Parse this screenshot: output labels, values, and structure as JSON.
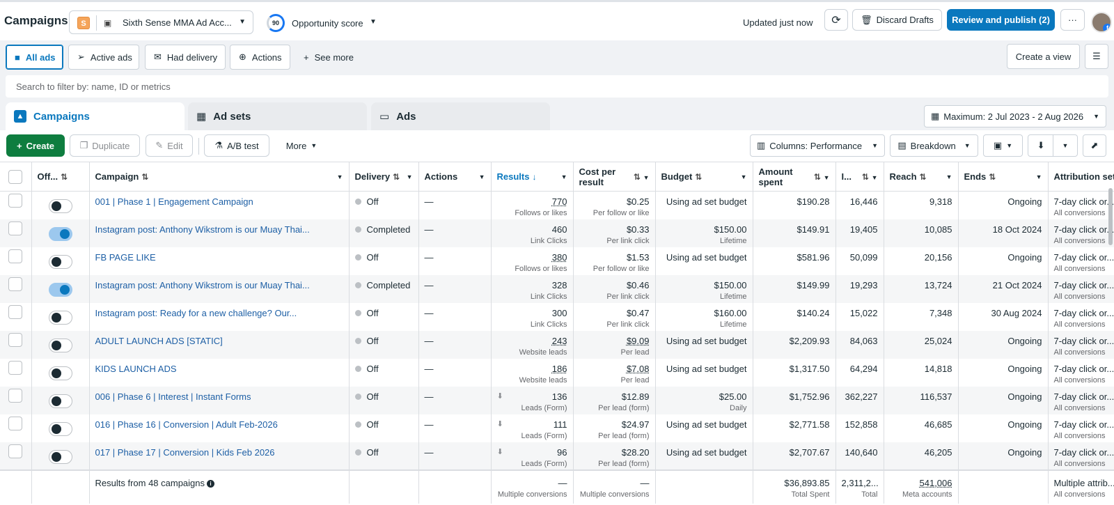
{
  "header": {
    "title": "Campaigns",
    "account_badge": "S",
    "account_name": "Sixth Sense MMA Ad Acc...",
    "opportunity_score": "90",
    "opportunity_label": "Opportunity score",
    "updated": "Updated just now",
    "discard_label": "Discard Drafts",
    "publish_label": "Review and publish (2)",
    "more_label": "···"
  },
  "filters": {
    "chips": [
      "All ads",
      "Active ads",
      "Had delivery",
      "Actions",
      "See more"
    ],
    "create_view": "Create a view"
  },
  "search": {
    "placeholder": "Search to filter by: name, ID or metrics"
  },
  "tabs": [
    "Campaigns",
    "Ad sets",
    "Ads"
  ],
  "date_range": "Maximum: 2 Jul 2023 - 2 Aug 2026",
  "toolbar": {
    "create": "Create",
    "duplicate": "Duplicate",
    "edit": "Edit",
    "ab_test": "A/B test",
    "more": "More",
    "columns": "Columns: Performance",
    "breakdown": "Breakdown"
  },
  "columns": {
    "offon": "Off...",
    "campaign": "Campaign",
    "delivery": "Delivery",
    "actions": "Actions",
    "results": "Results",
    "cost_per_result": "Cost per result",
    "budget": "Budget",
    "amount_spent": "Amount spent",
    "impressions": "I...",
    "reach": "Reach",
    "ends": "Ends",
    "attribution": "Attribution setting"
  },
  "rows": [
    {
      "on": false,
      "campaign": "001 | Phase 1 | Engagement Campaign",
      "delivery": "Off",
      "actions": "—",
      "results": "770",
      "results_sub": "Follows or likes",
      "cpr": "$0.25",
      "cpr_sub": "Per follow or like",
      "budget": "Using ad set budget",
      "budget_sub": "",
      "spent": "$190.28",
      "impr": "16,446",
      "reach": "9,318",
      "ends": "Ongoing",
      "attr": "7-day click or...",
      "attr_sub": "All conversions",
      "dl": false,
      "u": true
    },
    {
      "on": true,
      "campaign": "Instagram post: Anthony Wikstrom is our Muay Thai...",
      "delivery": "Completed",
      "actions": "—",
      "results": "460",
      "results_sub": "Link Clicks",
      "cpr": "$0.33",
      "cpr_sub": "Per link click",
      "budget": "$150.00",
      "budget_sub": "Lifetime",
      "spent": "$149.91",
      "impr": "19,405",
      "reach": "10,085",
      "ends": "18 Oct 2024",
      "attr": "7-day click or...",
      "attr_sub": "All conversions",
      "dl": false,
      "u": false
    },
    {
      "on": false,
      "campaign": "FB PAGE LIKE",
      "delivery": "Off",
      "actions": "—",
      "results": "380",
      "results_sub": "Follows or likes",
      "cpr": "$1.53",
      "cpr_sub": "Per follow or like",
      "budget": "Using ad set budget",
      "budget_sub": "",
      "spent": "$581.96",
      "impr": "50,099",
      "reach": "20,156",
      "ends": "Ongoing",
      "attr": "7-day click or...",
      "attr_sub": "All conversions",
      "dl": false,
      "u": true
    },
    {
      "on": true,
      "campaign": "Instagram post: Anthony Wikstrom is our Muay Thai...",
      "delivery": "Completed",
      "actions": "—",
      "results": "328",
      "results_sub": "Link Clicks",
      "cpr": "$0.46",
      "cpr_sub": "Per link click",
      "budget": "$150.00",
      "budget_sub": "Lifetime",
      "spent": "$149.99",
      "impr": "19,293",
      "reach": "13,724",
      "ends": "21 Oct 2024",
      "attr": "7-day click or...",
      "attr_sub": "All conversions",
      "dl": false,
      "u": false
    },
    {
      "on": false,
      "campaign": "Instagram post: Ready for a new challenge? Our...",
      "delivery": "Off",
      "actions": "—",
      "results": "300",
      "results_sub": "Link Clicks",
      "cpr": "$0.47",
      "cpr_sub": "Per link click",
      "budget": "$160.00",
      "budget_sub": "Lifetime",
      "spent": "$140.24",
      "impr": "15,022",
      "reach": "7,348",
      "ends": "30 Aug 2024",
      "attr": "7-day click or...",
      "attr_sub": "All conversions",
      "dl": false,
      "u": false
    },
    {
      "on": false,
      "campaign": "ADULT LAUNCH ADS [STATIC]",
      "delivery": "Off",
      "actions": "—",
      "results": "243",
      "results_sub": "Website leads",
      "cpr": "$9.09",
      "cpr_sub": "Per lead",
      "budget": "Using ad set budget",
      "budget_sub": "",
      "spent": "$2,209.93",
      "impr": "84,063",
      "reach": "25,024",
      "ends": "Ongoing",
      "attr": "7-day click or...",
      "attr_sub": "All conversions",
      "dl": false,
      "u": true
    },
    {
      "on": false,
      "campaign": "KIDS LAUNCH ADS",
      "delivery": "Off",
      "actions": "—",
      "results": "186",
      "results_sub": "Website leads",
      "cpr": "$7.08",
      "cpr_sub": "Per lead",
      "budget": "Using ad set budget",
      "budget_sub": "",
      "spent": "$1,317.50",
      "impr": "64,294",
      "reach": "14,818",
      "ends": "Ongoing",
      "attr": "7-day click or...",
      "attr_sub": "All conversions",
      "dl": false,
      "u": true
    },
    {
      "on": false,
      "campaign": "006 | Phase 6 | Interest | Instant Forms",
      "delivery": "Off",
      "actions": "—",
      "results": "136",
      "results_sub": "Leads (Form)",
      "cpr": "$12.89",
      "cpr_sub": "Per lead (form)",
      "budget": "$25.00",
      "budget_sub": "Daily",
      "spent": "$1,752.96",
      "impr": "362,227",
      "reach": "116,537",
      "ends": "Ongoing",
      "attr": "7-day click or...",
      "attr_sub": "All conversions",
      "dl": true,
      "u": false
    },
    {
      "on": false,
      "campaign": "016 | Phase 16 | Conversion | Adult Feb-2026",
      "delivery": "Off",
      "actions": "—",
      "results": "111",
      "results_sub": "Leads (Form)",
      "cpr": "$24.97",
      "cpr_sub": "Per lead (form)",
      "budget": "Using ad set budget",
      "budget_sub": "",
      "spent": "$2,771.58",
      "impr": "152,858",
      "reach": "46,685",
      "ends": "Ongoing",
      "attr": "7-day click or...",
      "attr_sub": "All conversions",
      "dl": true,
      "u": false
    },
    {
      "on": false,
      "campaign": "017 | Phase 17 | Conversion | Kids Feb 2026",
      "delivery": "Off",
      "actions": "—",
      "results": "96",
      "results_sub": "Leads (Form)",
      "cpr": "$28.20",
      "cpr_sub": "Per lead (form)",
      "budget": "Using ad set budget",
      "budget_sub": "",
      "spent": "$2,707.67",
      "impr": "140,640",
      "reach": "46,205",
      "ends": "Ongoing",
      "attr": "7-day click or...",
      "attr_sub": "All conversions",
      "dl": true,
      "u": false
    }
  ],
  "footer": {
    "summary": "Results from 48 campaigns",
    "results": "—",
    "results_sub": "Multiple conversions",
    "cpr": "—",
    "cpr_sub": "Multiple conversions",
    "spent": "$36,893.85",
    "spent_sub": "Total Spent",
    "impr": "2,311,2...",
    "impr_sub": "Total",
    "reach": "541,006",
    "reach_sub": "Meta accounts",
    "attr": "Multiple attrib...",
    "attr_sub": "All conversions"
  },
  "colors": {
    "accent": "#0a78be",
    "create": "#0e7d3f",
    "text": "#1c2b33"
  }
}
